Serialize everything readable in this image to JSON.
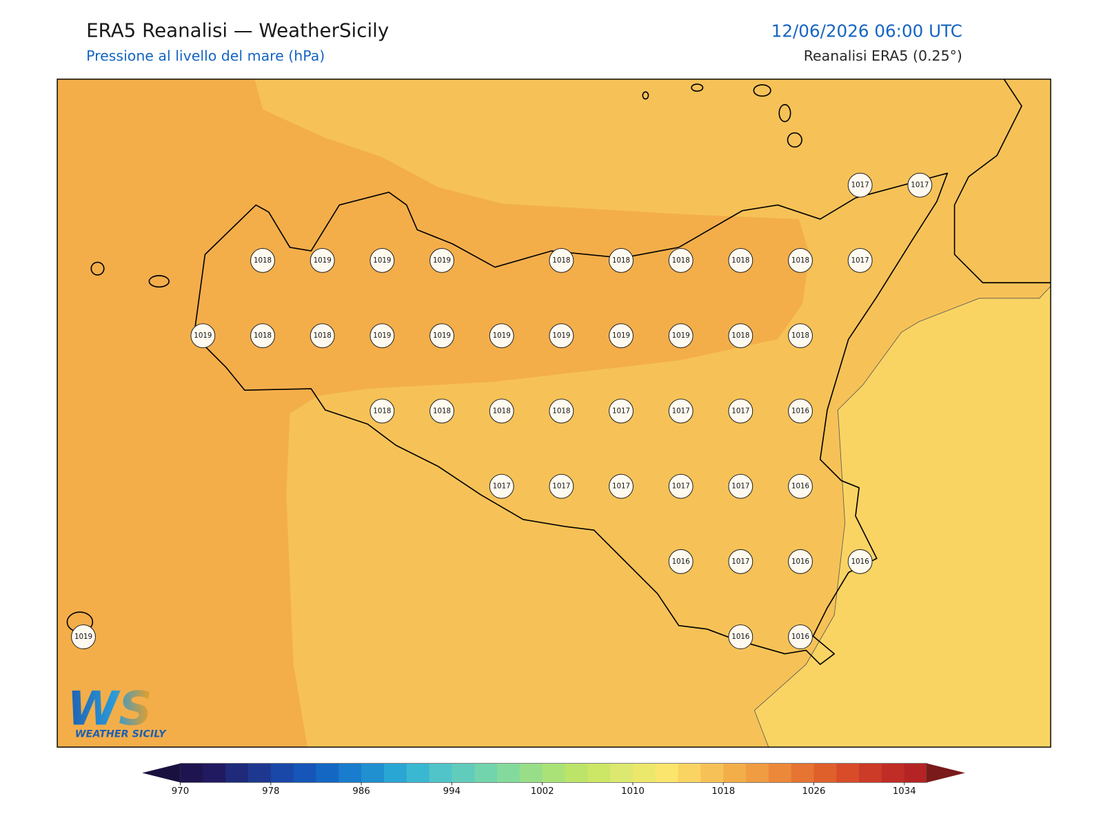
{
  "header": {
    "title": "ERA5 Reanalisi — WeatherSicily",
    "subtitle": "Pressione al livello del mare (hPa)",
    "valid_time": "12/06/2026 06:00 UTC",
    "source": "Reanalisi ERA5 (0.25°)"
  },
  "map": {
    "pressure_labels": [
      [
        null,
        null,
        null,
        null,
        null,
        null,
        null,
        null,
        null,
        null,
        null,
        null,
        null,
        1017,
        1017
      ],
      [
        null,
        null,
        null,
        1018,
        1019,
        1019,
        1019,
        null,
        1018,
        1018,
        1018,
        1018,
        1018,
        1017,
        null
      ],
      [
        null,
        null,
        1019,
        1018,
        1018,
        1019,
        1019,
        1019,
        1019,
        1019,
        1019,
        1018,
        1018,
        null,
        null
      ],
      [
        null,
        null,
        null,
        null,
        null,
        1018,
        1018,
        1018,
        1018,
        1017,
        1017,
        1017,
        1016,
        null,
        null
      ],
      [
        null,
        null,
        null,
        null,
        null,
        null,
        null,
        1017,
        1017,
        1017,
        1017,
        1017,
        1016,
        null,
        null
      ],
      [
        null,
        null,
        null,
        null,
        null,
        null,
        null,
        null,
        null,
        null,
        1016,
        1017,
        1016,
        1016,
        null
      ],
      [
        1019,
        null,
        null,
        null,
        null,
        null,
        null,
        null,
        null,
        null,
        null,
        1016,
        1016,
        null,
        null
      ]
    ]
  },
  "colorbar": {
    "lim": [
      970,
      1036
    ],
    "ticks": [
      970,
      978,
      986,
      994,
      1002,
      1010,
      1018,
      1026,
      1034
    ],
    "colors": [
      "#1e1450",
      "#221a60",
      "#1f2a7a",
      "#1e3890",
      "#1a48a8",
      "#1556b8",
      "#1468c4",
      "#1a7ccc",
      "#2090d0",
      "#2aa6d4",
      "#3ab8d2",
      "#50c4c8",
      "#62ccbc",
      "#72d4ac",
      "#84da9c",
      "#98de88",
      "#aae278",
      "#bce468",
      "#cce666",
      "#dce870",
      "#ece86c",
      "#fce56c",
      "#f9d462",
      "#f6c257",
      "#f3ae4a",
      "#f09c42",
      "#ec883a",
      "#e67432",
      "#e0602c",
      "#d84c2a",
      "#cc3a28",
      "#c02c26",
      "#b42424"
    ]
  },
  "logo": {
    "mark": "WS",
    "name": "WEATHER SICILY"
  }
}
